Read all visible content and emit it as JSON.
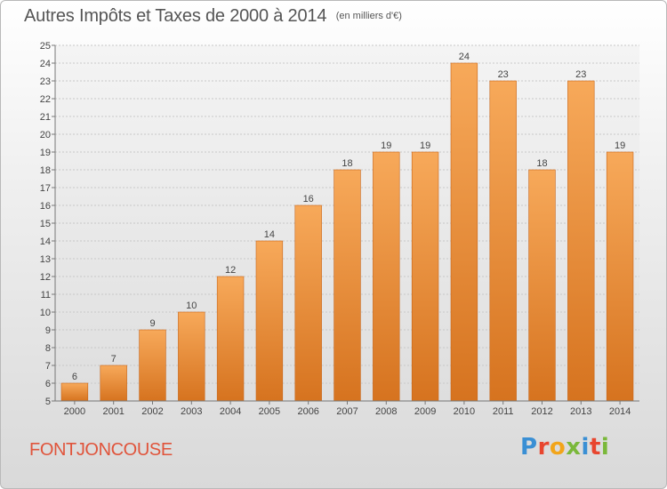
{
  "header": {
    "title": "Autres Impôts et Taxes de 2000 à 2014",
    "subtitle": "(en milliers d'€)"
  },
  "footer": {
    "commune": "FONTJONCOUSE",
    "logo_text": "Proxiti"
  },
  "colors": {
    "bar_top": "#f7a95a",
    "bar_bottom": "#d6731f",
    "bar_edge": "#c8661a",
    "commune_text": "#e0543b",
    "logo_letters": [
      "#3a8fd4",
      "#e8462f",
      "#f2a51a",
      "#7ab83a",
      "#3a8fd4",
      "#e8462f",
      "#7ab83a"
    ]
  },
  "chart_data": {
    "type": "bar",
    "title": "Autres Impôts et Taxes de 2000 à 2014",
    "subtitle": "(en milliers d'€)",
    "categories": [
      "2000",
      "2001",
      "2002",
      "2003",
      "2004",
      "2005",
      "2006",
      "2007",
      "2008",
      "2009",
      "2010",
      "2011",
      "2012",
      "2013",
      "2014"
    ],
    "values": [
      6,
      7,
      9,
      10,
      12,
      14,
      16,
      18,
      19,
      19,
      24,
      23,
      18,
      23,
      19
    ],
    "ylim": [
      5,
      25
    ],
    "yticks": [
      5,
      6,
      7,
      8,
      9,
      10,
      11,
      12,
      13,
      14,
      15,
      16,
      17,
      18,
      19,
      20,
      21,
      22,
      23,
      24,
      25
    ],
    "grid": true,
    "data_labels": true
  }
}
